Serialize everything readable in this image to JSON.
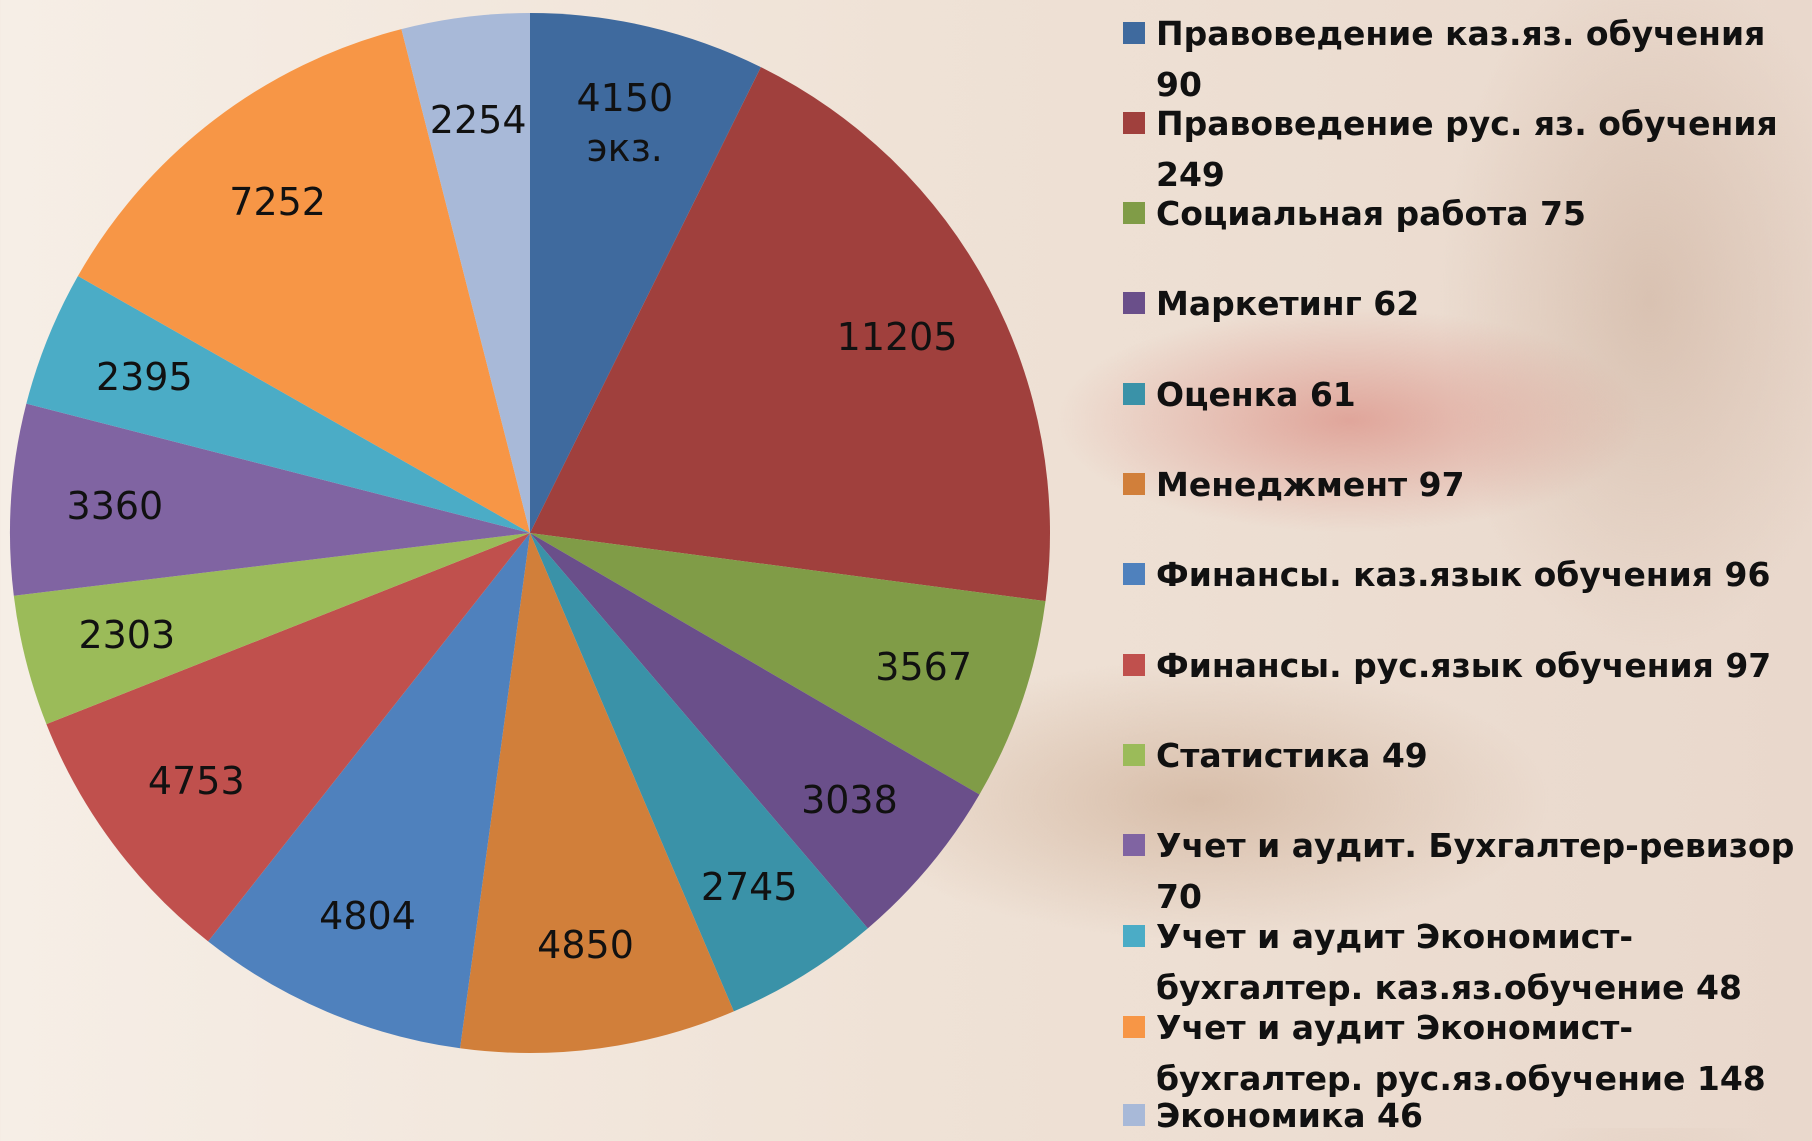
{
  "chart_data": {
    "type": "pie",
    "categories": [
      "Правоведение каз.яз. обучения 90",
      "Правоведение рус. яз. обучения 249",
      "Социальная работа 75",
      "Маркетинг 62",
      "Оценка 61",
      "Менеджмент 97",
      "Финансы. каз.язык обучения 96",
      "Финансы. рус.язык обучения 97",
      "Статистика 49",
      "Учет и аудит. Бухгалтер-ревизор 70",
      "Учет и аудит Экономист-бухгалтер. каз.яз.обучение 48",
      "Учет и аудит Экономист-бухгалтер. рус.яз.обучение 148",
      "Экономика 46"
    ],
    "values": [
      4150,
      11205,
      3567,
      3038,
      2745,
      4850,
      4804,
      4753,
      2303,
      3360,
      2395,
      7252,
      2254
    ],
    "value_labels": [
      "4150 экз.",
      "11205",
      "3567",
      "3038",
      "2745",
      "4850",
      "4804",
      "4753",
      "2303",
      "3360",
      "2395",
      "7252",
      "2254"
    ],
    "colors": [
      "#3f6a9e",
      "#a0403d",
      "#809c47",
      "#6a4f8a",
      "#3a92a8",
      "#d17f3a",
      "#4f81bd",
      "#c0504d",
      "#9bbb59",
      "#8064a2",
      "#4bacc6",
      "#f79646",
      "#a8b9d8"
    ]
  }
}
